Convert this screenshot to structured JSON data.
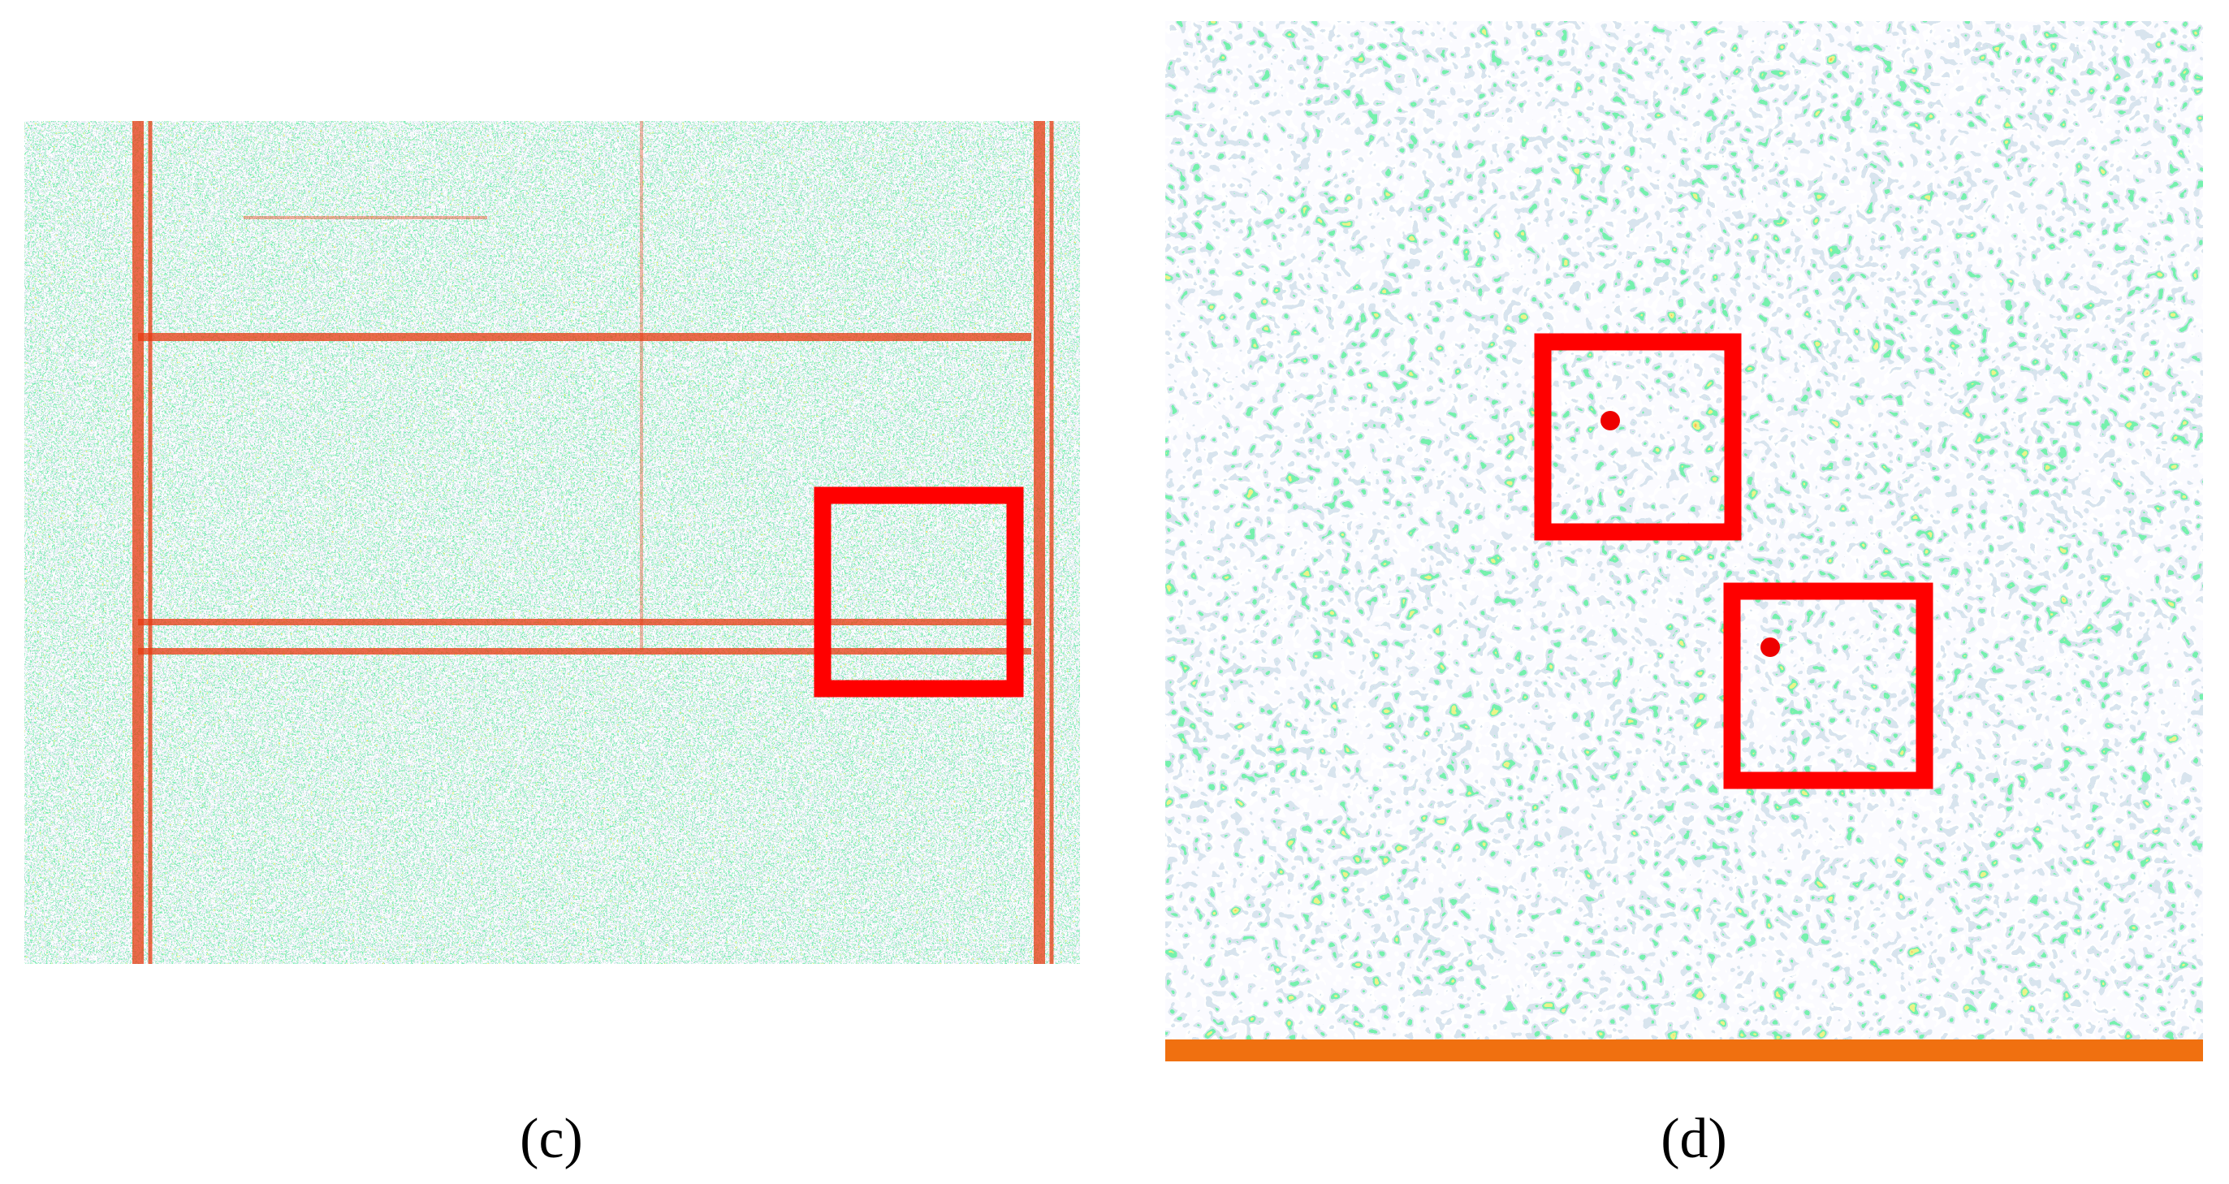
{
  "panels": [
    {
      "label": "(c)"
    },
    {
      "label": "(d)"
    }
  ]
}
